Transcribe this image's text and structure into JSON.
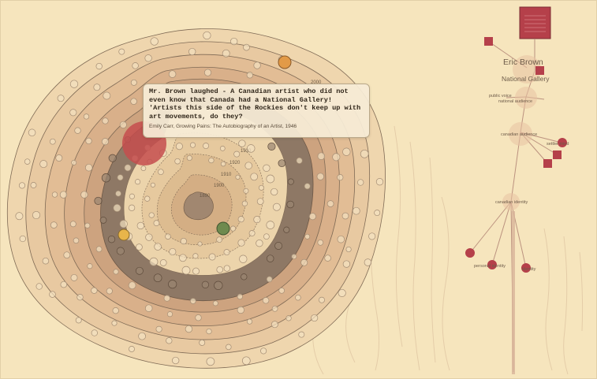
{
  "quote": {
    "text": "Mr. Brown laughed - A Canadian artist who did not even know that Canada had a National Gallery! 'Artists this side of the Rockies don't keep up with art movements, do they?",
    "citation": "Emily Carr, Growing Pains: The Autobiography of an Artist, 1946"
  },
  "rings": {
    "year_labels": [
      "2000",
      "1930",
      "1920",
      "1910",
      "1900",
      "1890"
    ]
  },
  "network": {
    "main_node": "Eric Brown",
    "sub_node": "National Gallery",
    "nodes": [
      "public voice",
      "national audience",
      "canadian audience",
      "canadian identity",
      "settler mind",
      "personal identity",
      "identity"
    ]
  },
  "colors": {
    "background": "#f6e5bd",
    "node_red": "#b5404a",
    "highlight_orange": "#e29a47",
    "highlight_yellow": "#e8b54a",
    "highlight_green": "#6e8a4e",
    "dark_band": "#8a7460"
  }
}
